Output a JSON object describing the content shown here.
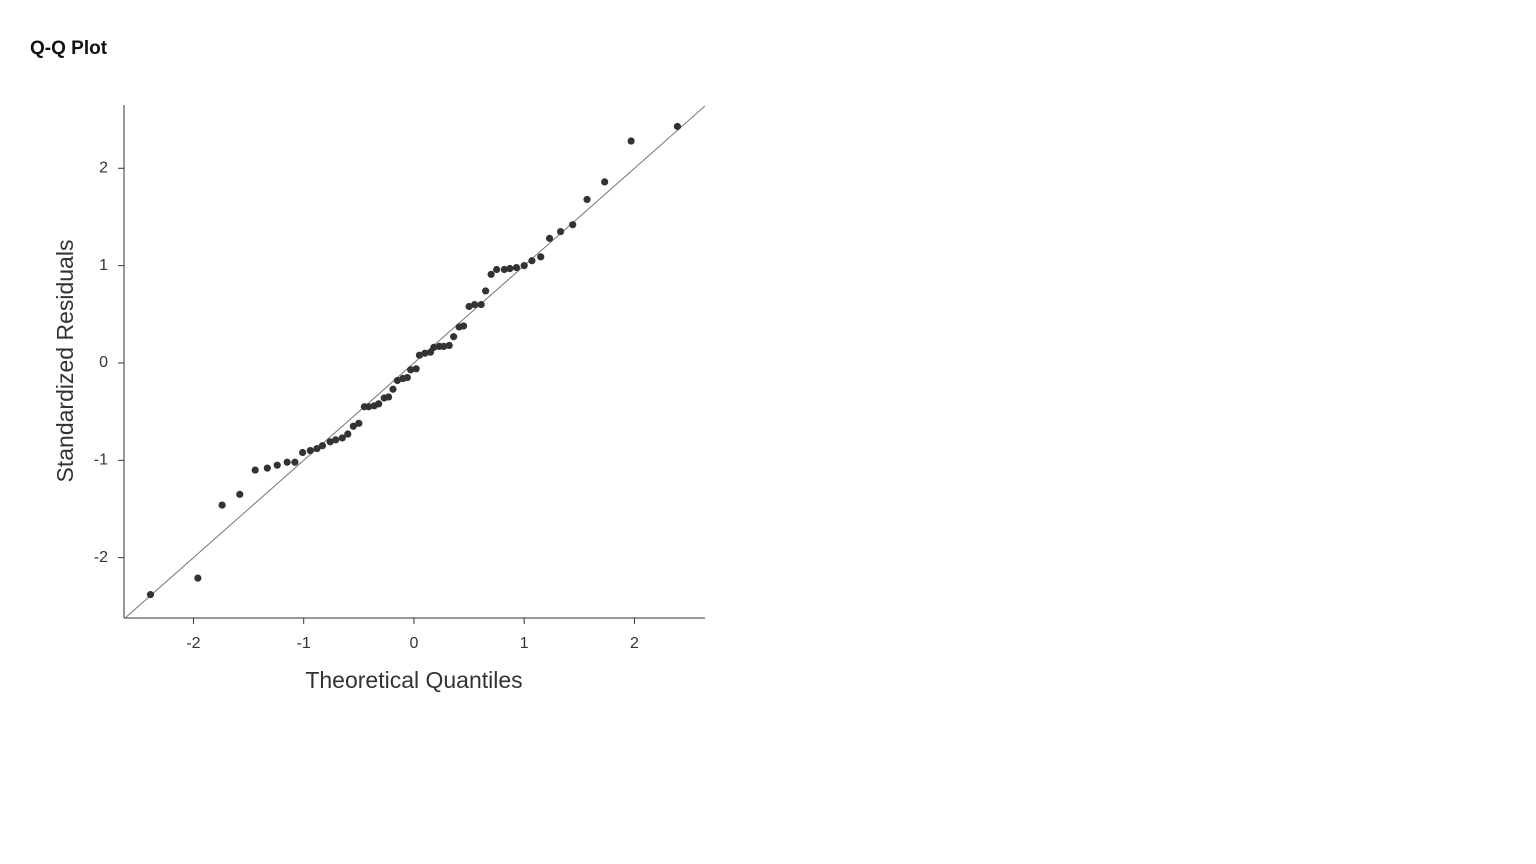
{
  "chart_data": {
    "type": "scatter",
    "title": "Q-Q Plot",
    "x_label": "Theoretical Quantiles",
    "y_label": "Standardized Residuals",
    "x": [
      -2.39,
      -1.96,
      -1.74,
      -1.58,
      -1.44,
      -1.33,
      -1.24,
      -1.15,
      -1.08,
      -1.01,
      -0.94,
      -0.88,
      -0.83,
      -0.76,
      -0.71,
      -0.65,
      -0.6,
      -0.55,
      -0.5,
      -0.45,
      -0.41,
      -0.36,
      -0.32,
      -0.27,
      -0.23,
      -0.19,
      -0.15,
      -0.1,
      -0.06,
      -0.03,
      0.02,
      0.05,
      0.1,
      0.15,
      0.18,
      0.23,
      0.27,
      0.32,
      0.36,
      0.41,
      0.45,
      0.5,
      0.55,
      0.61,
      0.65,
      0.7,
      0.75,
      0.82,
      0.87,
      0.93,
      1.0,
      1.07,
      1.15,
      1.23,
      1.33,
      1.44,
      1.57,
      1.73,
      1.97,
      2.39
    ],
    "y": [
      -2.38,
      -2.21,
      -1.46,
      -1.35,
      -1.1,
      -1.08,
      -1.05,
      -1.02,
      -1.02,
      -0.92,
      -0.9,
      -0.88,
      -0.85,
      -0.81,
      -0.79,
      -0.77,
      -0.73,
      -0.65,
      -0.62,
      -0.45,
      -0.45,
      -0.44,
      -0.42,
      -0.36,
      -0.35,
      -0.27,
      -0.18,
      -0.16,
      -0.15,
      -0.07,
      -0.06,
      0.08,
      0.1,
      0.11,
      0.16,
      0.17,
      0.17,
      0.18,
      0.27,
      0.37,
      0.38,
      0.58,
      0.6,
      0.6,
      0.74,
      0.91,
      0.96,
      0.96,
      0.97,
      0.98,
      1.0,
      1.05,
      1.09,
      1.28,
      1.35,
      1.42,
      1.68,
      1.86,
      2.28,
      2.43
    ],
    "color": "#333333",
    "reference_line": {
      "slope": 1,
      "intercept": 0,
      "color": "#777777"
    },
    "xlim": [
      -2.63,
      2.64
    ],
    "ylim": [
      -2.62,
      2.65
    ],
    "xticks": [
      -2,
      -1,
      0,
      1,
      2
    ],
    "yticks": [
      -2,
      -1,
      0,
      1,
      2
    ]
  }
}
